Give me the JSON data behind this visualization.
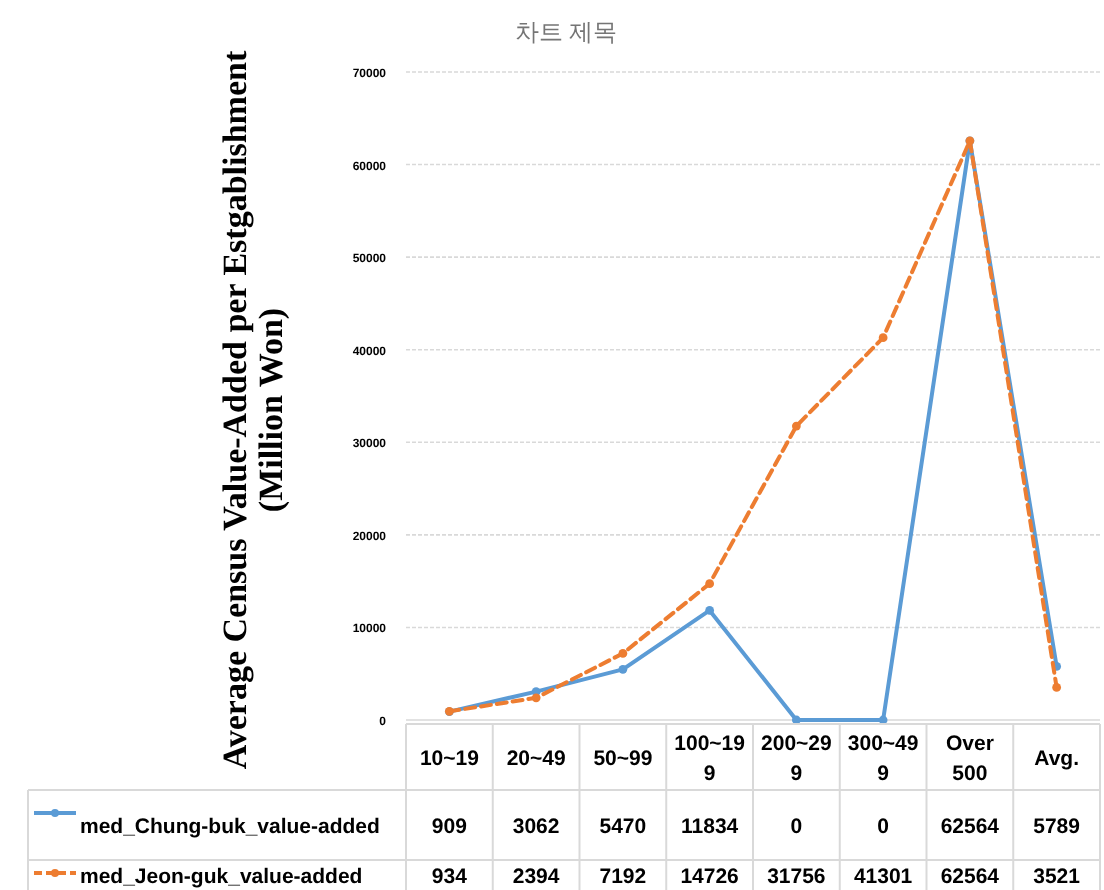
{
  "chart_data": {
    "type": "line",
    "title": "차트 제목",
    "ylabel": "Average Census Value-Added per Estgablishment (Million Won)",
    "categories": [
      "10~19",
      "20~49",
      "50~99",
      "100~199",
      "200~299",
      "300~499",
      "Over 500",
      "Avg."
    ],
    "series": [
      {
        "name": "med_Chung-buk_value-added",
        "color": "#5b9bd5",
        "line_style": "solid",
        "values": [
          909,
          3062,
          5470,
          11834,
          0,
          0,
          62564,
          5789
        ]
      },
      {
        "name": "med_Jeon-guk_value-added",
        "color": "#ed7d31",
        "line_style": "dashed",
        "values": [
          934,
          2394,
          7192,
          14726,
          31756,
          41301,
          62564,
          3521
        ]
      }
    ],
    "ylim": [
      0,
      70000
    ],
    "yticks": [
      0,
      10000,
      20000,
      30000,
      40000,
      50000,
      60000,
      70000
    ],
    "grid": "y",
    "marker": "circle",
    "legend": "bottom",
    "data_labels": true
  }
}
